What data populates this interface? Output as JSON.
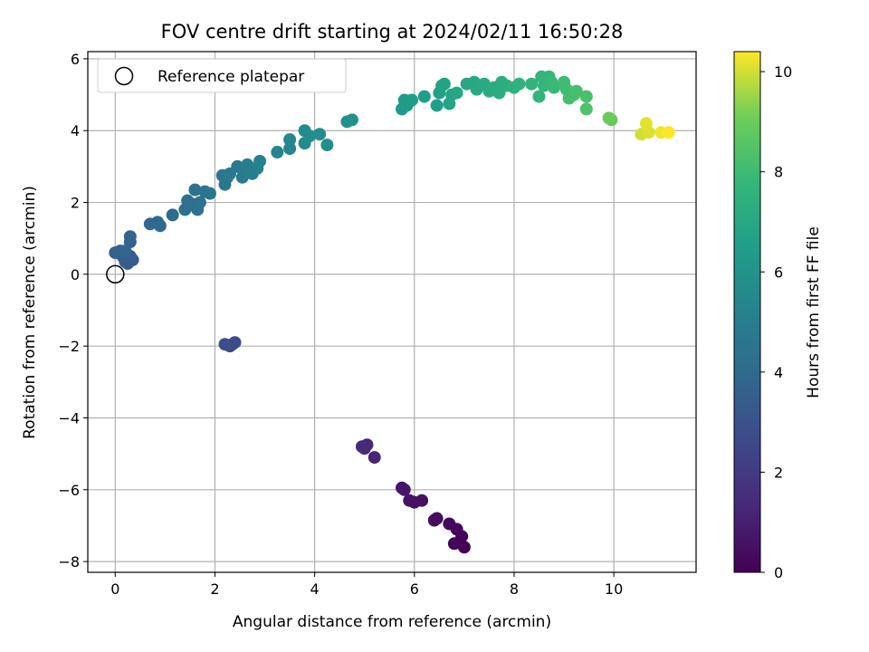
{
  "chart_data": {
    "type": "scatter",
    "title": "FOV centre drift starting at 2024/02/11 16:50:28",
    "xlabel": "Angular distance from reference (arcmin)",
    "ylabel": "Rotation from reference (arcmin)",
    "xlim": [
      -0.55,
      11.65
    ],
    "ylim": [
      -8.3,
      6.2
    ],
    "xticks": [
      0,
      2,
      4,
      6,
      8,
      10
    ],
    "yticks": [
      -8,
      -6,
      -4,
      -2,
      0,
      2,
      4,
      6
    ],
    "grid": true,
    "colormap": "viridis",
    "colorbar": {
      "label": "Hours from first FF file",
      "range": [
        0,
        10.4
      ],
      "ticks": [
        0,
        2,
        4,
        6,
        8,
        10
      ]
    },
    "legend": {
      "placement": "top-left",
      "entries": [
        "Reference platepar"
      ]
    },
    "reference_point": {
      "x": 0,
      "y": 0,
      "label": "Reference platepar"
    },
    "points": [
      [
        7.0,
        -7.6,
        0.05
      ],
      [
        6.95,
        -7.3,
        0.1
      ],
      [
        6.8,
        -7.5,
        0.15
      ],
      [
        6.85,
        -7.1,
        0.2
      ],
      [
        6.7,
        -6.95,
        0.25
      ],
      [
        6.45,
        -6.8,
        0.35
      ],
      [
        6.4,
        -6.85,
        0.4
      ],
      [
        6.15,
        -6.3,
        0.5
      ],
      [
        6.0,
        -6.35,
        0.55
      ],
      [
        5.9,
        -6.3,
        0.6
      ],
      [
        5.8,
        -6.0,
        0.7
      ],
      [
        5.75,
        -5.95,
        0.75
      ],
      [
        5.2,
        -5.1,
        1.2
      ],
      [
        5.05,
        -4.75,
        1.3
      ],
      [
        5.0,
        -4.85,
        1.35
      ],
      [
        4.95,
        -4.8,
        1.4
      ],
      [
        2.35,
        -1.95,
        2.6
      ],
      [
        2.3,
        -2.0,
        2.65
      ],
      [
        2.4,
        -1.9,
        2.7
      ],
      [
        2.2,
        -1.95,
        2.75
      ],
      [
        0.25,
        0.3,
        3.3
      ],
      [
        0.35,
        0.4,
        3.35
      ],
      [
        0.2,
        0.35,
        3.4
      ],
      [
        0.15,
        0.5,
        3.45
      ],
      [
        0.3,
        0.5,
        3.5
      ],
      [
        0.0,
        0.6,
        3.6
      ],
      [
        0.1,
        0.65,
        3.65
      ],
      [
        0.3,
        0.9,
        3.7
      ],
      [
        0.3,
        1.05,
        3.75
      ],
      [
        0.2,
        0.65,
        3.8
      ],
      [
        0.7,
        1.4,
        3.9
      ],
      [
        0.85,
        1.45,
        3.95
      ],
      [
        0.9,
        1.35,
        4.0
      ],
      [
        1.15,
        1.65,
        4.1
      ],
      [
        1.4,
        1.8,
        4.2
      ],
      [
        1.45,
        2.05,
        4.25
      ],
      [
        1.55,
        1.95,
        4.3
      ],
      [
        1.65,
        1.8,
        4.35
      ],
      [
        1.7,
        2.0,
        4.4
      ],
      [
        1.6,
        2.35,
        4.45
      ],
      [
        1.8,
        2.3,
        4.5
      ],
      [
        1.9,
        2.25,
        4.55
      ],
      [
        2.15,
        2.75,
        4.6
      ],
      [
        2.25,
        2.7,
        4.65
      ],
      [
        2.2,
        2.5,
        4.7
      ],
      [
        2.3,
        2.8,
        4.75
      ],
      [
        2.45,
        3.0,
        4.8
      ],
      [
        2.55,
        2.7,
        4.85
      ],
      [
        2.6,
        2.85,
        4.9
      ],
      [
        2.65,
        3.05,
        4.95
      ],
      [
        2.7,
        2.95,
        5.0
      ],
      [
        2.75,
        2.8,
        5.05
      ],
      [
        2.85,
        2.95,
        5.1
      ],
      [
        2.9,
        3.15,
        5.15
      ],
      [
        3.25,
        3.4,
        5.3
      ],
      [
        3.5,
        3.5,
        5.4
      ],
      [
        3.5,
        3.75,
        5.45
      ],
      [
        3.8,
        3.65,
        5.55
      ],
      [
        3.8,
        4.0,
        5.6
      ],
      [
        3.9,
        3.85,
        5.65
      ],
      [
        4.1,
        3.9,
        5.7
      ],
      [
        4.25,
        3.6,
        5.75
      ],
      [
        4.65,
        4.25,
        5.9
      ],
      [
        4.75,
        4.3,
        5.95
      ],
      [
        5.75,
        4.6,
        6.3
      ],
      [
        5.8,
        4.85,
        6.35
      ],
      [
        5.85,
        4.7,
        6.4
      ],
      [
        5.95,
        4.85,
        6.45
      ],
      [
        6.2,
        4.95,
        6.55
      ],
      [
        6.45,
        4.7,
        6.6
      ],
      [
        6.5,
        5.05,
        6.65
      ],
      [
        6.55,
        5.25,
        6.7
      ],
      [
        6.6,
        5.3,
        6.75
      ],
      [
        6.7,
        4.75,
        6.8
      ],
      [
        6.75,
        5.0,
        6.85
      ],
      [
        6.85,
        5.05,
        6.9
      ],
      [
        7.05,
        5.3,
        6.95
      ],
      [
        7.2,
        5.35,
        7.0
      ],
      [
        7.25,
        5.15,
        7.05
      ],
      [
        7.4,
        5.3,
        7.1
      ],
      [
        7.5,
        5.1,
        7.15
      ],
      [
        7.6,
        5.2,
        7.2
      ],
      [
        7.7,
        5.05,
        7.25
      ],
      [
        7.75,
        5.35,
        7.3
      ],
      [
        7.85,
        5.25,
        7.35
      ],
      [
        8.0,
        5.2,
        7.45
      ],
      [
        8.1,
        5.3,
        7.5
      ],
      [
        8.35,
        5.3,
        7.6
      ],
      [
        8.5,
        4.95,
        7.65
      ],
      [
        8.55,
        5.5,
        7.7
      ],
      [
        8.6,
        5.25,
        7.75
      ],
      [
        8.7,
        5.5,
        7.8
      ],
      [
        8.75,
        5.35,
        7.85
      ],
      [
        8.8,
        5.2,
        7.9
      ],
      [
        9.0,
        5.35,
        8.0
      ],
      [
        9.05,
        5.15,
        8.05
      ],
      [
        9.1,
        4.9,
        8.1
      ],
      [
        9.2,
        5.0,
        8.15
      ],
      [
        9.25,
        5.1,
        8.2
      ],
      [
        9.45,
        4.95,
        8.3
      ],
      [
        9.45,
        4.6,
        8.35
      ],
      [
        9.95,
        4.3,
        8.9
      ],
      [
        9.9,
        4.35,
        8.95
      ],
      [
        10.55,
        3.9,
        10.0
      ],
      [
        10.7,
        3.95,
        10.1
      ],
      [
        10.65,
        4.2,
        10.15
      ],
      [
        10.95,
        3.95,
        10.3
      ],
      [
        11.1,
        3.95,
        10.4
      ]
    ]
  }
}
